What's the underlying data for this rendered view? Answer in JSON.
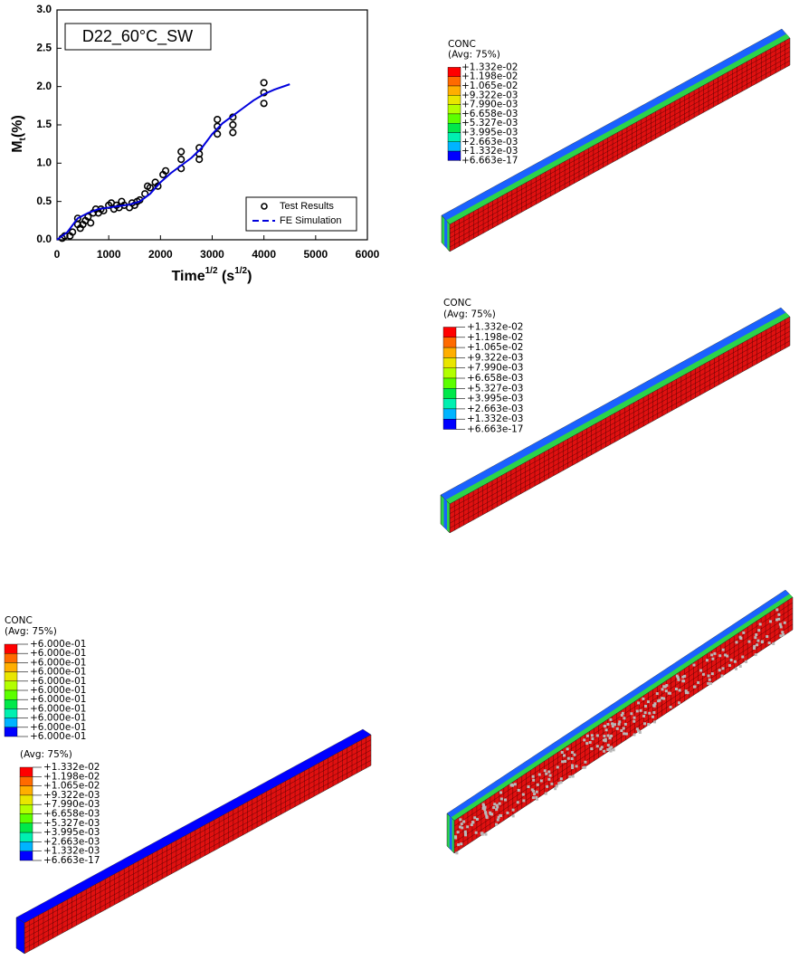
{
  "chart_data": {
    "type": "scatter",
    "title": "D22_60°C_SW",
    "x_label": [
      "Time",
      "1/2",
      " (s",
      "1/2",
      ")"
    ],
    "y_label": [
      "M",
      "t",
      "(%)"
    ],
    "xlim": [
      0,
      6000
    ],
    "xticks": [
      0,
      1000,
      2000,
      3000,
      4000,
      5000,
      6000
    ],
    "ylim": [
      0,
      3
    ],
    "yticks": [
      {
        "value": 0,
        "label": "0.0"
      },
      0.5,
      {
        "value": 1,
        "label": "1.0"
      },
      1.5,
      {
        "value": 2,
        "label": "2.0"
      },
      2.5,
      {
        "value": 3,
        "label": "3.0"
      }
    ],
    "legend": "lower right",
    "series": [
      {
        "name": "Test Results",
        "type": "scatter",
        "color": "#000000",
        "x": [
          100,
          150,
          250,
          300,
          400,
          400,
          450,
          500,
          550,
          600,
          650,
          700,
          750,
          800,
          850,
          900,
          1000,
          1050,
          1100,
          1150,
          1200,
          1250,
          1300,
          1400,
          1450,
          1500,
          1550,
          1600,
          1700,
          1750,
          1800,
          1900,
          1950,
          2050,
          2100,
          2400,
          2400,
          2400,
          2750,
          2750,
          2750,
          3100,
          3100,
          3100,
          3400,
          3400,
          3400,
          4000,
          4000,
          4000
        ],
        "values": [
          0.02,
          0.05,
          0.05,
          0.1,
          0.2,
          0.28,
          0.15,
          0.2,
          0.25,
          0.3,
          0.22,
          0.35,
          0.4,
          0.35,
          0.4,
          0.38,
          0.45,
          0.48,
          0.4,
          0.45,
          0.42,
          0.5,
          0.45,
          0.42,
          0.48,
          0.45,
          0.5,
          0.52,
          0.6,
          0.7,
          0.68,
          0.75,
          0.7,
          0.85,
          0.9,
          0.93,
          1.05,
          1.15,
          1.05,
          1.12,
          1.2,
          1.38,
          1.48,
          1.57,
          1.4,
          1.5,
          1.6,
          1.78,
          1.92,
          2.05
        ]
      },
      {
        "name": "FE Simulation",
        "type": "line",
        "color": "#0000dd",
        "x": [
          0,
          200,
          400,
          600,
          800,
          1000,
          1200,
          1400,
          1600,
          1800,
          2000,
          2200,
          2400,
          2600,
          2800,
          3000,
          3200,
          3400,
          3600,
          3800,
          4000,
          4200,
          4500
        ],
        "values": [
          0,
          0.1,
          0.28,
          0.35,
          0.4,
          0.42,
          0.44,
          0.46,
          0.5,
          0.6,
          0.75,
          0.87,
          0.97,
          1.07,
          1.2,
          1.38,
          1.52,
          1.62,
          1.72,
          1.82,
          1.9,
          1.96,
          2.03
        ]
      }
    ]
  },
  "contour_colors": [
    "#ff0000",
    "#ff6a00",
    "#ffae00",
    "#e9e600",
    "#b2ff00",
    "#5cff00",
    "#00e84a",
    "#00f0b0",
    "#00b4ff",
    "#1a62ff",
    "#0000ff"
  ],
  "panels": [
    {
      "legend": {
        "title": "CONC",
        "subtitle": "(Avg: 75%)",
        "labels": [
          "+1.332e-02",
          "+1.198e-02",
          "+1.065e-02",
          "+9.322e-03",
          "+7.990e-03",
          "+6.658e-03",
          "+5.327e-03",
          "+3.995e-03",
          "+2.663e-03",
          "+1.332e-03",
          "+6.663e-17"
        ]
      }
    },
    {
      "legend": {
        "title": "CONC",
        "subtitle": "(Avg: 75%)",
        "labels": [
          "+1.332e-02",
          "+1.198e-02",
          "+1.065e-02",
          "+9.322e-03",
          "+7.990e-03",
          "+6.658e-03",
          "+5.327e-03",
          "+3.995e-03",
          "+2.663e-03",
          "+1.332e-03",
          "+6.663e-17"
        ]
      }
    },
    {
      "legend": {
        "title": "CONC",
        "subtitle": "(Avg: 75%)",
        "labels": [
          "+6.000e-01",
          "+6.000e-01",
          "+6.000e-01",
          "+6.000e-01",
          "+6.000e-01",
          "+6.000e-01",
          "+6.000e-01",
          "+6.000e-01",
          "+6.000e-01",
          "+6.000e-01",
          "+6.000e-01"
        ]
      }
    },
    {
      "legend": {
        "subtitle": "(Avg: 75%)",
        "labels": [
          "+1.332e-02",
          "+1.198e-02",
          "+1.065e-02",
          "+9.322e-03",
          "+7.990e-03",
          "+6.658e-03",
          "+5.327e-03",
          "+3.995e-03",
          "+2.663e-03",
          "+1.332e-03",
          "+6.663e-17"
        ]
      }
    }
  ]
}
